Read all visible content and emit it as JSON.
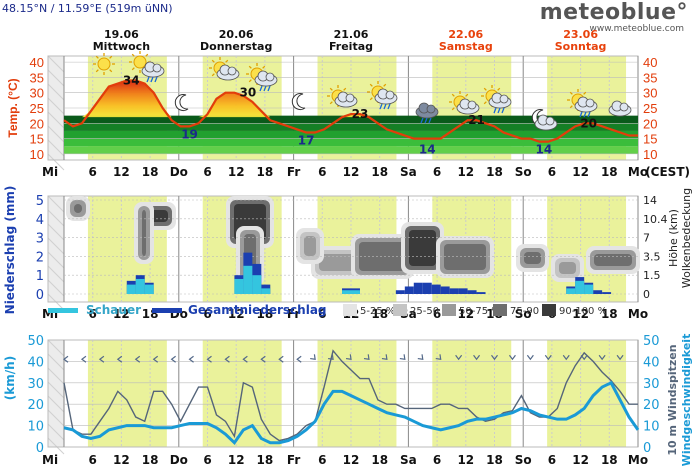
{
  "header": {
    "coordinates": "48.15°N / 11.59°E (519m üNN)",
    "brand": "meteoblue°",
    "brand_url": "www.meteoblue.com"
  },
  "colors": {
    "temp": "#e23d0b",
    "precip": "#1b3fb0",
    "wind": "#1a9ad6",
    "daylight": "#e3ee7a",
    "weekend": "#e8420c"
  },
  "days": [
    {
      "date": "19.06",
      "name": "Mittwoch",
      "weekend": false,
      "hi": "34",
      "lo": ""
    },
    {
      "date": "20.06",
      "name": "Donnerstag",
      "weekend": false,
      "hi": "30",
      "lo": "19"
    },
    {
      "date": "21.06",
      "name": "Freitag",
      "weekend": false,
      "hi": "23",
      "lo": "17"
    },
    {
      "date": "22.06",
      "name": "Samstag",
      "weekend": true,
      "hi": "21",
      "lo": "14"
    },
    {
      "date": "23.06",
      "name": "Sonntag",
      "weekend": true,
      "hi": "20",
      "lo": "14"
    }
  ],
  "xaxis_labels": [
    "Mi",
    "6",
    "12",
    "18",
    "Do",
    "6",
    "12",
    "18",
    "Fr",
    "6",
    "12",
    "18",
    "Sa",
    "6",
    "12",
    "18",
    "So",
    "6",
    "12",
    "18",
    "Mo"
  ],
  "xaxis_end_label": "(CEST)",
  "temp_panel": {
    "ylabel": "Temp. (°C)",
    "ticks": [
      "40",
      "35",
      "30",
      "25",
      "20",
      "15",
      "10"
    ]
  },
  "precip_panel": {
    "ylabel": "Niederschlag (mm)",
    "ticks_left": [
      "5",
      "4",
      "3",
      "2",
      "1",
      "0"
    ],
    "ticks_right": [
      "14",
      "10.4",
      "7",
      "3.5",
      "1.5",
      "0"
    ],
    "ylabel_right_1": "Höhe (km)",
    "ylabel_right_2": "Wolkenbedeckung",
    "legend_schauer": "Schauer",
    "legend_gesamt": "Gesamtniederschlag",
    "cloud_legend": [
      "5-25 %",
      "25-50 %",
      "50-75 %",
      "75-90 %",
      "90-100 %"
    ],
    "cloud_colors": [
      "#e4e4e4",
      "#c4c4c4",
      "#9a9a9a",
      "#6e6e6e",
      "#3a3a3a"
    ]
  },
  "wind_panel": {
    "ylabel": "(km/h)",
    "ticks": [
      "50",
      "40",
      "30",
      "20",
      "10",
      "0"
    ],
    "ylabel_right_1": "10 m Windspitzen",
    "ylabel_right_2": "Windgeschwindigkeit"
  },
  "chart_data": [
    {
      "type": "area",
      "series": [
        {
          "values": [
            21,
            19,
            20,
            24,
            28,
            32,
            33,
            34,
            34,
            33,
            30,
            25,
            21,
            19,
            19,
            20,
            23,
            28,
            30,
            30,
            29,
            27,
            24,
            21,
            20,
            19,
            18,
            17,
            17,
            18,
            20,
            22,
            23,
            23,
            22,
            20,
            18,
            17,
            16,
            15,
            15,
            15,
            15,
            17,
            19,
            21,
            21,
            20,
            19,
            17,
            16,
            15,
            15,
            14,
            14,
            15,
            17,
            19,
            20,
            20,
            19,
            18,
            17,
            16,
            16
          ]
        }
      ],
      "ylim": [
        8,
        42
      ],
      "ticks": [
        40,
        35,
        30,
        25,
        20,
        15,
        10
      ]
    },
    {
      "type": "bar",
      "series": [
        {
          "name": "Schauer",
          "values": [
            0,
            0,
            0,
            0,
            0,
            0,
            0,
            0.5,
            0.8,
            0.5,
            0,
            0,
            0,
            0,
            0,
            0,
            0,
            0,
            0,
            0.8,
            1.5,
            1.0,
            0.3,
            0,
            0,
            0,
            0,
            0,
            0,
            0,
            0,
            0.2,
            0.2,
            0,
            0,
            0,
            0,
            0,
            0,
            0,
            0,
            0,
            0,
            0,
            0,
            0,
            0,
            0,
            0,
            0,
            0,
            0,
            0,
            0,
            0,
            0,
            0.3,
            0.7,
            0.5,
            0,
            0,
            0,
            0,
            0,
            0
          ]
        },
        {
          "name": "Gesamtniederschlag",
          "values": [
            0,
            0,
            0,
            0,
            0,
            0,
            0,
            0.7,
            1.0,
            0.6,
            0,
            0,
            0,
            0,
            0,
            0,
            0,
            0,
            0,
            1.0,
            2.2,
            1.6,
            0.5,
            0,
            0,
            0,
            0,
            0,
            0,
            0,
            0,
            0.3,
            0.3,
            0,
            0,
            0,
            0,
            0.2,
            0.4,
            0.6,
            0.6,
            0.5,
            0.4,
            0.3,
            0.3,
            0.2,
            0.1,
            0,
            0,
            0,
            0,
            0,
            0,
            0,
            0,
            0,
            0.4,
            0.9,
            0.6,
            0.2,
            0.1,
            0,
            0,
            0,
            0
          ]
        }
      ],
      "ylim": [
        0,
        5
      ],
      "ticks": [
        0,
        1,
        2,
        3,
        4,
        5
      ]
    },
    {
      "type": "line",
      "series": [
        {
          "values": [
            30,
            8,
            6,
            6,
            12,
            18,
            26,
            22,
            14,
            12,
            26,
            26,
            20,
            12,
            20,
            28,
            28,
            15,
            12,
            5,
            30,
            28,
            13,
            6,
            3,
            4,
            6,
            10,
            12,
            28,
            45,
            40,
            36,
            32,
            32,
            22,
            20,
            20,
            18,
            18,
            18,
            18,
            20,
            20,
            18,
            18,
            14,
            12,
            13,
            16,
            17,
            24,
            16,
            14,
            14,
            18,
            30,
            38,
            44,
            40,
            35,
            31,
            26,
            20,
            20
          ]
        },
        {
          "values": [
            9,
            8,
            5,
            4,
            5,
            8,
            9,
            10,
            10,
            10,
            9,
            9,
            9,
            10,
            11,
            11,
            11,
            9,
            6,
            2,
            8,
            10,
            4,
            2,
            2,
            3,
            5,
            8,
            12,
            20,
            26,
            26,
            24,
            22,
            20,
            18,
            16,
            15,
            14,
            12,
            10,
            9,
            8,
            9,
            10,
            12,
            13,
            13,
            14,
            15,
            16,
            18,
            17,
            15,
            14,
            13,
            13,
            15,
            18,
            24,
            28,
            30,
            22,
            14,
            8
          ]
        }
      ],
      "ylim": [
        0,
        50
      ],
      "ticks": [
        0,
        10,
        20,
        30,
        40,
        50
      ]
    }
  ]
}
